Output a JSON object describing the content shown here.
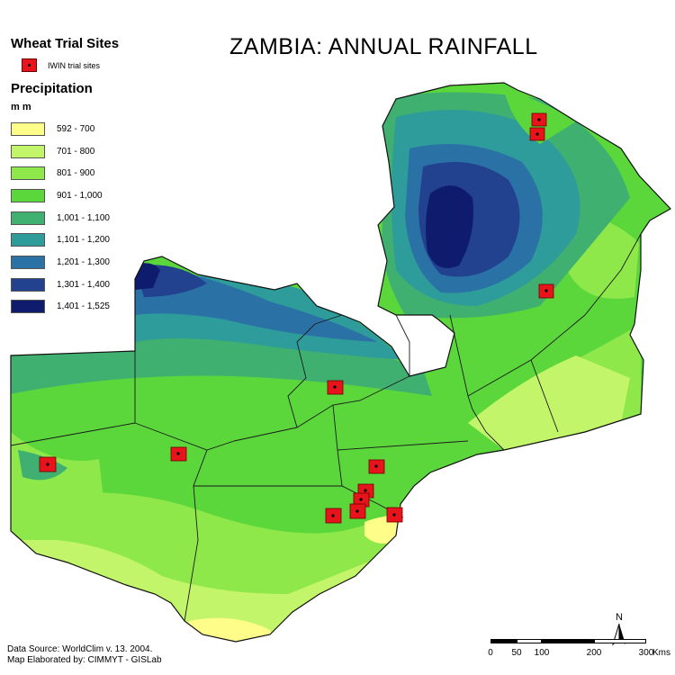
{
  "map_title": "ZAMBIA:  ANNUAL RAINFALL",
  "legend": {
    "sites_heading": "Wheat Trial Sites",
    "sites_label": "IWIN trial sites",
    "precip_heading": "Precipitation",
    "units": "m m",
    "classes": [
      {
        "label": "592 - 700",
        "color": "#fffd8a"
      },
      {
        "label": "701 - 800",
        "color": "#c2f56a"
      },
      {
        "label": "801 - 900",
        "color": "#8fe84a"
      },
      {
        "label": "901 - 1,000",
        "color": "#5bd73c"
      },
      {
        "label": "1,001 - 1,100",
        "color": "#3fb070"
      },
      {
        "label": "1,101 - 1,200",
        "color": "#2e9c9a"
      },
      {
        "label": "1,201 - 1,300",
        "color": "#2a72a6"
      },
      {
        "label": "1,301 - 1,400",
        "color": "#22418f"
      },
      {
        "label": "1,401 - 1,525",
        "color": "#0f1c6e"
      }
    ]
  },
  "credits": {
    "line1": "Data Source: WorldClim v. 13.  2004.",
    "line2": "Map Elaborated by: CIMMYT - GISLab"
  },
  "north_label": "N",
  "scale_bar": {
    "ticks": [
      "0",
      "50",
      "100",
      "200",
      "300"
    ],
    "unit": "Kms"
  },
  "trial_site_count": 12
}
